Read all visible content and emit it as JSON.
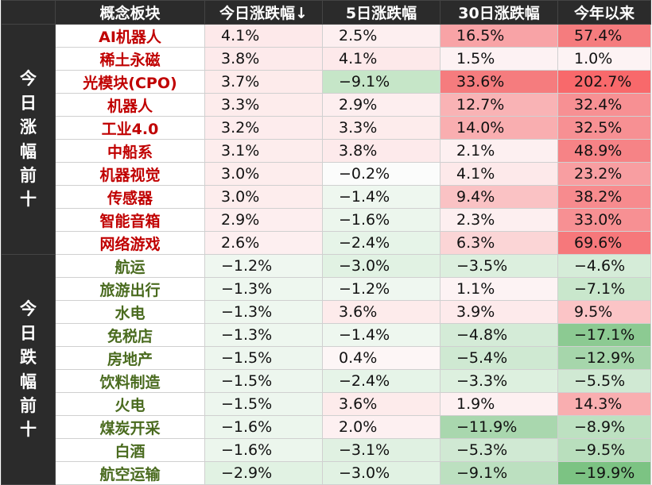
{
  "headers": [
    "概念板块",
    "今日涨跌幅↓",
    "5日涨跌幅",
    "30日涨跌幅",
    "今年以来"
  ],
  "groups": [
    {
      "label": "今日涨幅前十",
      "type": "up",
      "rows": [
        {
          "name": "AI机器人",
          "values": [
            "4.1%",
            "2.5%",
            "16.5%",
            "57.4%"
          ],
          "colors": [
            "#fde9ea",
            "#fdeff0",
            "#f8a3a6",
            "#f57c7e"
          ]
        },
        {
          "name": "稀土永磁",
          "values": [
            "3.8%",
            "4.1%",
            "1.5%",
            "1.0%"
          ],
          "colors": [
            "#fdeaeb",
            "#fde9ea",
            "#fdf2f3",
            "#fdf3f4"
          ]
        },
        {
          "name": "光模块(CPO)",
          "values": [
            "3.7%",
            "−9.1%",
            "33.6%",
            "202.7%"
          ],
          "colors": [
            "#fdebeb",
            "#c6e6c8",
            "#f57c7e",
            "#f8696b"
          ]
        },
        {
          "name": "机器人",
          "values": [
            "3.3%",
            "2.9%",
            "12.7%",
            "32.4%"
          ],
          "colors": [
            "#fdecec",
            "#fdeeef",
            "#f9b3b5",
            "#f79093"
          ]
        },
        {
          "name": "工业4.0",
          "values": [
            "3.2%",
            "3.3%",
            "14.0%",
            "32.5%"
          ],
          "colors": [
            "#fdeced",
            "#fdecec",
            "#f9aeb0",
            "#f79093"
          ]
        },
        {
          "name": "中船系",
          "values": [
            "3.1%",
            "3.8%",
            "2.1%",
            "48.9%"
          ],
          "colors": [
            "#fdeded",
            "#fdeaeb",
            "#fdf0f1",
            "#f68386"
          ]
        },
        {
          "name": "机器视觉",
          "values": [
            "3.0%",
            "−0.2%",
            "4.1%",
            "23.2%"
          ],
          "colors": [
            "#fdeded",
            "#fbfcfb",
            "#fde9ea",
            "#f89ea1"
          ]
        },
        {
          "name": "传感器",
          "values": [
            "3.0%",
            "−1.4%",
            "9.4%",
            "38.2%"
          ],
          "colors": [
            "#fdeded",
            "#eef7ef",
            "#fac2c4",
            "#f78b8e"
          ]
        },
        {
          "name": "智能音箱",
          "values": [
            "2.9%",
            "−1.6%",
            "2.3%",
            "33.0%"
          ],
          "colors": [
            "#fdeeef",
            "#ecf6ed",
            "#fdeff0",
            "#f79093"
          ]
        },
        {
          "name": "网络游戏",
          "values": [
            "2.6%",
            "−2.4%",
            "6.3%",
            "69.6%"
          ],
          "colors": [
            "#fdeff0",
            "#e6f4e8",
            "#fbd5d6",
            "#f6787b"
          ]
        }
      ]
    },
    {
      "label": "今日跌幅前十",
      "type": "down",
      "rows": [
        {
          "name": "航运",
          "values": [
            "−1.2%",
            "−3.0%",
            "−3.5%",
            "−4.6%"
          ],
          "colors": [
            "#eff7f0",
            "#e1f2e3",
            "#dcefde",
            "#d5ecd8"
          ]
        },
        {
          "name": "旅游出行",
          "values": [
            "−1.3%",
            "−1.2%",
            "1.1%",
            "−7.1%"
          ],
          "colors": [
            "#eef7ef",
            "#eff7f0",
            "#fdf3f4",
            "#c9e7cc"
          ]
        },
        {
          "name": "水电",
          "values": [
            "−1.3%",
            "3.6%",
            "3.9%",
            "9.5%"
          ],
          "colors": [
            "#eef7ef",
            "#fdebeb",
            "#fdeaeb",
            "#fbc4c6"
          ]
        },
        {
          "name": "免税店",
          "values": [
            "−1.3%",
            "−1.4%",
            "−4.8%",
            "−17.1%"
          ],
          "colors": [
            "#eef7ef",
            "#eef7ef",
            "#d4ebd7",
            "#8cca92"
          ]
        },
        {
          "name": "房地产",
          "values": [
            "−1.5%",
            "0.4%",
            "−5.4%",
            "−12.9%"
          ],
          "colors": [
            "#edf6ee",
            "#fdf6f6",
            "#cfe9d2",
            "#a6d6ab"
          ]
        },
        {
          "name": "饮料制造",
          "values": [
            "−1.5%",
            "−2.4%",
            "−3.3%",
            "−5.5%"
          ],
          "colors": [
            "#edf6ee",
            "#e6f4e8",
            "#ddf0df",
            "#d0e9d3"
          ]
        },
        {
          "name": "火电",
          "values": [
            "−1.5%",
            "3.6%",
            "1.9%",
            "14.3%"
          ],
          "colors": [
            "#edf6ee",
            "#fdebeb",
            "#fdf0f1",
            "#f9aeb0"
          ]
        },
        {
          "name": "煤炭开采",
          "values": [
            "−1.6%",
            "2.0%",
            "−11.9%",
            "−8.9%"
          ],
          "colors": [
            "#ecf6ed",
            "#fdf0f1",
            "#a9d7ae",
            "#bde1c1"
          ]
        },
        {
          "name": "白酒",
          "values": [
            "−1.6%",
            "−3.1%",
            "−5.3%",
            "−9.5%"
          ],
          "colors": [
            "#ecf6ed",
            "#e0f1e2",
            "#d0e9d3",
            "#b9dfbd"
          ]
        },
        {
          "name": "航空运输",
          "values": [
            "−2.9%",
            "−3.0%",
            "−9.1%",
            "−19.9%"
          ],
          "colors": [
            "#e1f2e3",
            "#e1f2e3",
            "#bce0c0",
            "#7cc383"
          ]
        }
      ]
    }
  ]
}
